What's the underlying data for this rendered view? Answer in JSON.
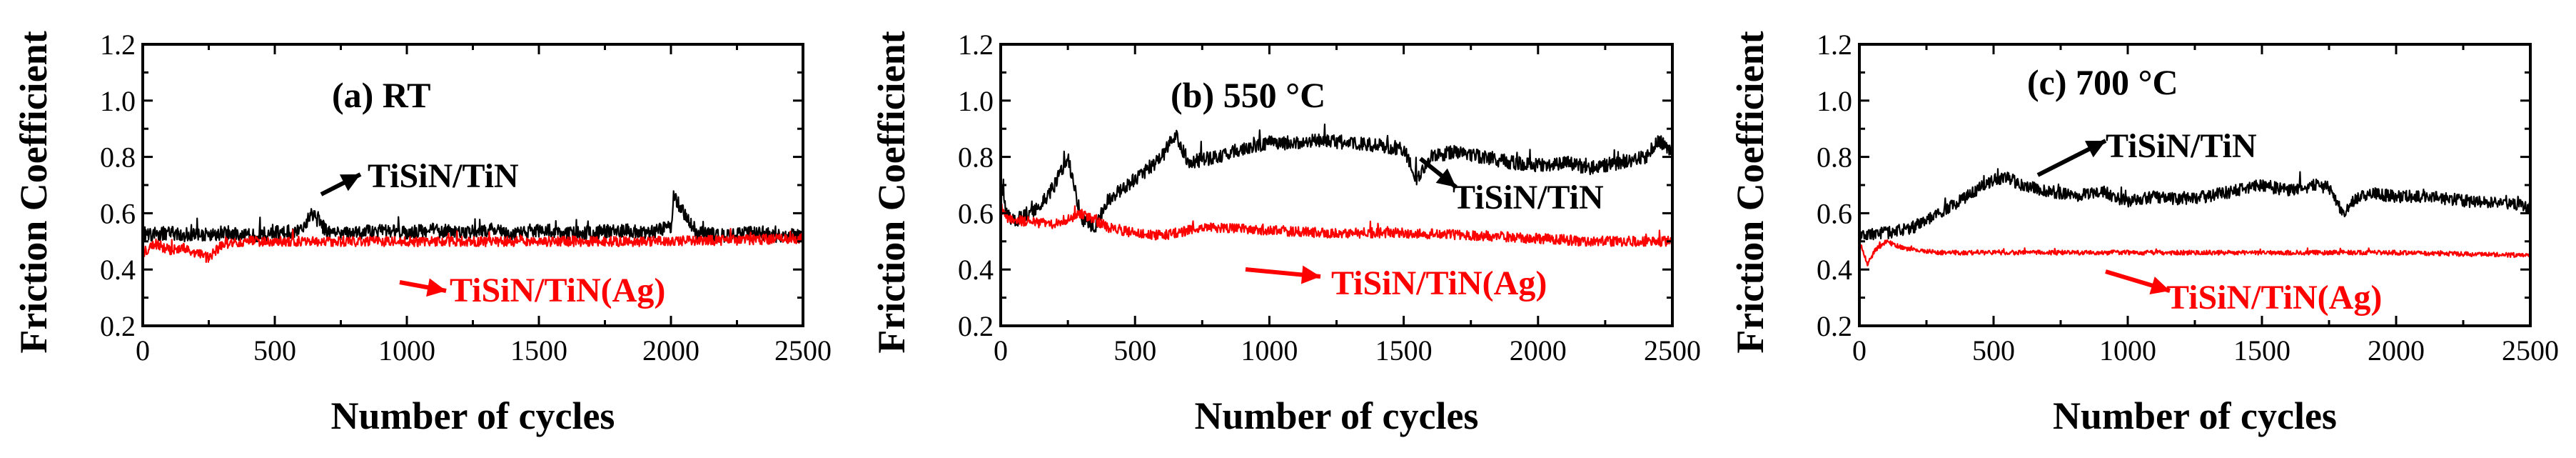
{
  "chart_data": [
    {
      "type": "line",
      "title": "(a) RT",
      "xlabel": "Number of cycles",
      "ylabel": "Friction Coefficient",
      "xlim": [
        0,
        2500
      ],
      "ylim": [
        0.2,
        1.2
      ],
      "xticks": [
        "0",
        "500",
        "1000",
        "1500",
        "2000",
        "2500"
      ],
      "yticks": [
        "0.2",
        "0.4",
        "0.6",
        "0.8",
        "1.0",
        "1.2"
      ],
      "series": [
        {
          "name": "TiSiN/TiN",
          "color": "#000000",
          "x": [
            0,
            100,
            200,
            300,
            400,
            500,
            600,
            640,
            700,
            800,
            900,
            1000,
            1100,
            1200,
            1300,
            1400,
            1500,
            1600,
            1700,
            1800,
            1900,
            2000,
            2010,
            2100,
            2200,
            2300,
            2400,
            2500
          ],
          "y": [
            0.52,
            0.53,
            0.52,
            0.53,
            0.52,
            0.53,
            0.54,
            0.6,
            0.53,
            0.53,
            0.54,
            0.53,
            0.54,
            0.53,
            0.54,
            0.53,
            0.54,
            0.53,
            0.53,
            0.54,
            0.53,
            0.55,
            0.66,
            0.53,
            0.52,
            0.53,
            0.52,
            0.52
          ],
          "noise": 0.025
        },
        {
          "name": "TiSiN/TiN(Ag)",
          "color": "#ff0000",
          "x": [
            0,
            50,
            100,
            150,
            200,
            250,
            300,
            400,
            500,
            700,
            1000,
            1500,
            2000,
            2500
          ],
          "y": [
            0.46,
            0.49,
            0.47,
            0.48,
            0.46,
            0.44,
            0.49,
            0.5,
            0.5,
            0.5,
            0.5,
            0.5,
            0.5,
            0.51
          ],
          "noise": 0.018
        }
      ]
    },
    {
      "type": "line",
      "title": "(b) 550 °C",
      "xlabel": "Number of cycles",
      "ylabel": "Friction Coefficient",
      "xlim": [
        0,
        2500
      ],
      "ylim": [
        0.2,
        1.2
      ],
      "xticks": [
        "0",
        "500",
        "1000",
        "1500",
        "2000",
        "2500"
      ],
      "yticks": [
        "0.2",
        "0.4",
        "0.6",
        "0.8",
        "1.0",
        "1.2"
      ],
      "series": [
        {
          "name": "TiSiN/TiN",
          "color": "#000000",
          "x": [
            0,
            20,
            50,
            100,
            150,
            200,
            250,
            300,
            350,
            400,
            500,
            600,
            650,
            700,
            800,
            900,
            1000,
            1100,
            1200,
            1300,
            1400,
            1500,
            1550,
            1600,
            1700,
            1800,
            1900,
            2000,
            2100,
            2200,
            2300,
            2400,
            2450,
            2500
          ],
          "y": [
            0.7,
            0.6,
            0.57,
            0.6,
            0.63,
            0.7,
            0.8,
            0.58,
            0.55,
            0.65,
            0.72,
            0.8,
            0.88,
            0.78,
            0.8,
            0.83,
            0.85,
            0.85,
            0.86,
            0.85,
            0.84,
            0.83,
            0.72,
            0.8,
            0.82,
            0.8,
            0.78,
            0.77,
            0.78,
            0.76,
            0.78,
            0.8,
            0.86,
            0.82
          ],
          "noise": 0.025
        },
        {
          "name": "TiSiN/TiN(Ag)",
          "color": "#ff0000",
          "x": [
            0,
            30,
            100,
            200,
            300,
            400,
            500,
            600,
            700,
            800,
            1000,
            1200,
            1500,
            1800,
            2000,
            2200,
            2500
          ],
          "y": [
            0.62,
            0.58,
            0.57,
            0.56,
            0.6,
            0.55,
            0.53,
            0.52,
            0.54,
            0.55,
            0.54,
            0.53,
            0.53,
            0.52,
            0.51,
            0.5,
            0.5
          ],
          "noise": 0.018
        }
      ]
    },
    {
      "type": "line",
      "title": "(c) 700 °C",
      "xlabel": "Number of cycles",
      "ylabel": "Friction Coefficient",
      "xlim": [
        0,
        2500
      ],
      "ylim": [
        0.2,
        1.2
      ],
      "xticks": [
        "0",
        "500",
        "1000",
        "1500",
        "2000",
        "2500"
      ],
      "yticks": [
        "0.2",
        "0.4",
        "0.6",
        "0.8",
        "1.0",
        "1.2"
      ],
      "series": [
        {
          "name": "TiSiN/TiN",
          "color": "#000000",
          "x": [
            0,
            100,
            200,
            300,
            400,
            500,
            550,
            600,
            700,
            800,
            900,
            1000,
            1100,
            1200,
            1300,
            1400,
            1500,
            1600,
            1700,
            1750,
            1800,
            1850,
            1900,
            2000,
            2100,
            2200,
            2300,
            2400,
            2500
          ],
          "y": [
            0.52,
            0.53,
            0.55,
            0.6,
            0.66,
            0.72,
            0.73,
            0.7,
            0.68,
            0.66,
            0.68,
            0.64,
            0.66,
            0.65,
            0.66,
            0.68,
            0.7,
            0.68,
            0.7,
            0.69,
            0.6,
            0.65,
            0.67,
            0.66,
            0.66,
            0.65,
            0.64,
            0.64,
            0.62
          ],
          "noise": 0.022
        },
        {
          "name": "TiSiN/TiN(Ag)",
          "color": "#ff0000",
          "x": [
            0,
            30,
            60,
            100,
            150,
            200,
            300,
            500,
            1000,
            1500,
            2000,
            2500
          ],
          "y": [
            0.5,
            0.42,
            0.47,
            0.5,
            0.48,
            0.47,
            0.46,
            0.46,
            0.46,
            0.46,
            0.46,
            0.45
          ],
          "noise": 0.008
        }
      ]
    }
  ]
}
